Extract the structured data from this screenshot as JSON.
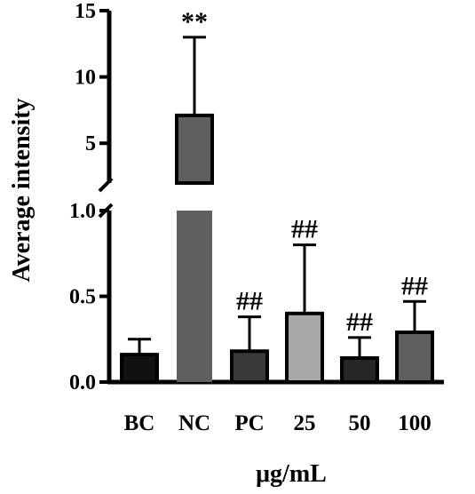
{
  "chart_data": {
    "type": "bar",
    "categories": [
      "BC",
      "NC",
      "PC",
      "25",
      "50",
      "100"
    ],
    "values": [
      0.16,
      7.1,
      0.18,
      0.4,
      0.14,
      0.29
    ],
    "errors_upper": [
      0.25,
      13.0,
      0.38,
      0.8,
      0.26,
      0.47
    ],
    "bar_colors": [
      "#111111",
      "#5f5f5f",
      "#3a3a3a",
      "#a8a8a8",
      "#262626",
      "#5f5f5f"
    ],
    "annotations": [
      "",
      "**",
      "##",
      "##",
      "##",
      "##"
    ],
    "xlabel": "μg/mL",
    "ylabel": "Average intensity",
    "y_axis_broken": true,
    "y_segments": [
      {
        "range": [
          0,
          1.0
        ],
        "ticks": [
          "0.0",
          "0.5",
          "1.0"
        ],
        "tick_values": [
          0,
          0.5,
          1.0
        ]
      },
      {
        "range": [
          2,
          15
        ],
        "ticks": [
          "5",
          "10",
          "15"
        ],
        "tick_values": [
          5,
          10,
          15
        ]
      }
    ],
    "grid": false,
    "legend": "none"
  }
}
